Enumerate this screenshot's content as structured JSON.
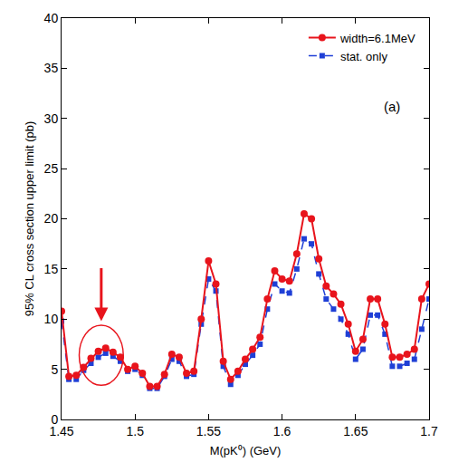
{
  "chart_data": {
    "type": "line",
    "x_label": "M(pK⁰) (GeV)",
    "y_label": "95% CL cross section upper limit (pb)",
    "annotation": "(a)",
    "x": [
      1.45,
      1.455,
      1.46,
      1.465,
      1.47,
      1.475,
      1.48,
      1.485,
      1.49,
      1.495,
      1.5,
      1.505,
      1.51,
      1.515,
      1.52,
      1.525,
      1.53,
      1.535,
      1.54,
      1.545,
      1.55,
      1.555,
      1.56,
      1.565,
      1.57,
      1.575,
      1.58,
      1.585,
      1.59,
      1.595,
      1.6,
      1.605,
      1.61,
      1.615,
      1.62,
      1.625,
      1.63,
      1.635,
      1.64,
      1.645,
      1.65,
      1.655,
      1.66,
      1.665,
      1.67,
      1.675,
      1.68,
      1.685,
      1.69,
      1.695,
      1.7
    ],
    "series": [
      {
        "name": "width=6.1MeV",
        "color": "#e8141c",
        "marker": "circle",
        "line_style": "solid",
        "values": [
          10.8,
          4.3,
          4.4,
          5.2,
          6.1,
          6.8,
          7.1,
          6.7,
          6.2,
          5.0,
          5.3,
          4.6,
          3.3,
          3.3,
          4.5,
          6.5,
          6.2,
          4.6,
          4.8,
          10.0,
          15.8,
          13.5,
          5.8,
          4.0,
          4.8,
          6.0,
          7.0,
          8.2,
          12.0,
          14.8,
          14.0,
          13.8,
          16.5,
          20.5,
          20.0,
          16.0,
          13.3,
          12.5,
          11.5,
          9.5,
          6.8,
          8.0,
          12.0,
          12.0,
          9.5,
          6.2,
          6.2,
          6.5,
          7.0,
          12.0,
          13.5
        ]
      },
      {
        "name": "stat. only",
        "color": "#1f3fd6",
        "marker": "square",
        "line_style": "dash",
        "values": [
          9.8,
          4.0,
          4.0,
          4.9,
          5.6,
          6.2,
          6.6,
          6.3,
          5.8,
          4.8,
          5.0,
          4.4,
          3.1,
          3.1,
          4.3,
          6.0,
          5.8,
          4.3,
          4.5,
          9.5,
          14.0,
          12.8,
          5.3,
          3.5,
          4.4,
          5.5,
          6.4,
          7.5,
          11.0,
          13.5,
          12.8,
          12.6,
          15.0,
          18.0,
          17.5,
          14.5,
          12.0,
          11.0,
          10.0,
          8.5,
          6.0,
          7.0,
          10.4,
          10.4,
          8.5,
          5.3,
          5.3,
          5.6,
          6.0,
          9.0,
          12.0
        ]
      }
    ],
    "xlim": [
      1.45,
      1.7
    ],
    "xticks": [
      1.45,
      1.5,
      1.55,
      1.6,
      1.65,
      1.7
    ],
    "ylim": [
      0,
      40
    ],
    "yticks": [
      0,
      5,
      10,
      15,
      20,
      25,
      30,
      35,
      40
    ],
    "grid": false,
    "legend": "top right"
  }
}
